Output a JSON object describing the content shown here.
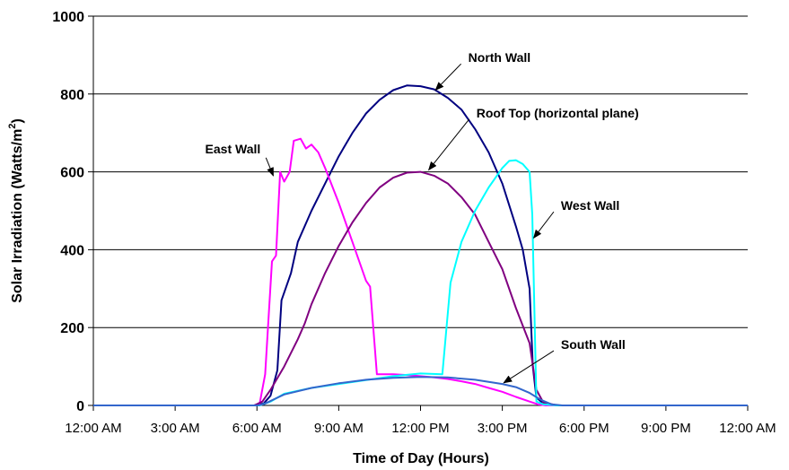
{
  "chart_data": {
    "type": "line",
    "title": "",
    "xlabel": "Time of Day (Hours)",
    "ylabel": "Solar Irradiation (Watts/m",
    "ylabel_sup": "2",
    "ylabel_tail": ")",
    "xlim": [
      0,
      24
    ],
    "ylim": [
      0,
      1000
    ],
    "yticks": [
      0,
      200,
      400,
      600,
      800,
      1000
    ],
    "yticks_labels": [
      "0",
      "200",
      "400",
      "600",
      "800",
      "1000"
    ],
    "xticks": [
      0,
      3,
      6,
      9,
      12,
      15,
      18,
      21,
      24
    ],
    "xtick_labels": [
      "12:00 AM",
      "3:00 AM",
      "6:00 AM",
      "9:00 AM",
      "12:00 PM",
      "3:00 PM",
      "6:00 PM",
      "9:00 PM",
      "12:00 AM"
    ],
    "grid": "horizontal",
    "series": [
      {
        "name": "North Wall",
        "color": "#000080",
        "points": [
          [
            0,
            0
          ],
          [
            5.9,
            0
          ],
          [
            6.25,
            5
          ],
          [
            6.5,
            25
          ],
          [
            6.75,
            90
          ],
          [
            6.9,
            270
          ],
          [
            7.25,
            340
          ],
          [
            7.5,
            420
          ],
          [
            8,
            500
          ],
          [
            8.5,
            570
          ],
          [
            9,
            640
          ],
          [
            9.5,
            700
          ],
          [
            10,
            750
          ],
          [
            10.5,
            785
          ],
          [
            11,
            810
          ],
          [
            11.5,
            822
          ],
          [
            12,
            820
          ],
          [
            12.5,
            812
          ],
          [
            13,
            790
          ],
          [
            13.5,
            760
          ],
          [
            14,
            710
          ],
          [
            14.5,
            650
          ],
          [
            15,
            570
          ],
          [
            15.5,
            460
          ],
          [
            15.75,
            400
          ],
          [
            16,
            300
          ],
          [
            16.12,
            100
          ],
          [
            16.25,
            20
          ],
          [
            16.5,
            5
          ],
          [
            17,
            0
          ],
          [
            24,
            0
          ]
        ]
      },
      {
        "name": "East Wall",
        "color": "#ff00ff",
        "points": [
          [
            0,
            0
          ],
          [
            5.9,
            0
          ],
          [
            6.1,
            5
          ],
          [
            6.3,
            80
          ],
          [
            6.55,
            370
          ],
          [
            6.7,
            385
          ],
          [
            6.85,
            600
          ],
          [
            7,
            575
          ],
          [
            7.2,
            600
          ],
          [
            7.35,
            680
          ],
          [
            7.6,
            685
          ],
          [
            7.8,
            660
          ],
          [
            8,
            670
          ],
          [
            8.25,
            650
          ],
          [
            8.5,
            610
          ],
          [
            9,
            520
          ],
          [
            9.5,
            420
          ],
          [
            10,
            320
          ],
          [
            10.15,
            305
          ],
          [
            10.4,
            80
          ],
          [
            11,
            80
          ],
          [
            11.5,
            78
          ],
          [
            12,
            75
          ],
          [
            12.5,
            72
          ],
          [
            13,
            68
          ],
          [
            13.5,
            62
          ],
          [
            14,
            55
          ],
          [
            14.5,
            45
          ],
          [
            15,
            35
          ],
          [
            15.5,
            22
          ],
          [
            16,
            10
          ],
          [
            16.3,
            3
          ],
          [
            16.6,
            0
          ],
          [
            24,
            0
          ]
        ]
      },
      {
        "name": "Roof Top (horizontal plane)",
        "color": "#800080",
        "points": [
          [
            0,
            0
          ],
          [
            5.9,
            0
          ],
          [
            6.2,
            10
          ],
          [
            6.5,
            40
          ],
          [
            7,
            100
          ],
          [
            7.5,
            170
          ],
          [
            7.75,
            210
          ],
          [
            8,
            260
          ],
          [
            8.5,
            340
          ],
          [
            9,
            410
          ],
          [
            9.5,
            470
          ],
          [
            10,
            520
          ],
          [
            10.5,
            560
          ],
          [
            11,
            585
          ],
          [
            11.5,
            598
          ],
          [
            12,
            600
          ],
          [
            12.5,
            590
          ],
          [
            13,
            570
          ],
          [
            13.5,
            535
          ],
          [
            14,
            490
          ],
          [
            14.5,
            420
          ],
          [
            15,
            350
          ],
          [
            15.5,
            250
          ],
          [
            16,
            160
          ],
          [
            16.25,
            40
          ],
          [
            16.5,
            8
          ],
          [
            17,
            0
          ],
          [
            24,
            0
          ]
        ]
      },
      {
        "name": "West Wall",
        "color": "#00ffff",
        "points": [
          [
            0,
            0
          ],
          [
            6.1,
            0
          ],
          [
            6.5,
            10
          ],
          [
            7,
            30
          ],
          [
            8,
            45
          ],
          [
            9,
            55
          ],
          [
            10,
            65
          ],
          [
            11,
            75
          ],
          [
            12,
            82
          ],
          [
            12.8,
            80
          ],
          [
            13.1,
            315
          ],
          [
            13.5,
            420
          ],
          [
            14,
            500
          ],
          [
            14.5,
            560
          ],
          [
            15,
            610
          ],
          [
            15.25,
            628
          ],
          [
            15.5,
            630
          ],
          [
            15.75,
            620
          ],
          [
            16,
            600
          ],
          [
            16.1,
            490
          ],
          [
            16.25,
            10
          ],
          [
            16.5,
            3
          ],
          [
            17,
            0
          ],
          [
            24,
            0
          ]
        ]
      },
      {
        "name": "South Wall",
        "color": "#3366cc",
        "points": [
          [
            0,
            0
          ],
          [
            6,
            0
          ],
          [
            6.25,
            3
          ],
          [
            6.6,
            15
          ],
          [
            7,
            28
          ],
          [
            8,
            45
          ],
          [
            9,
            57
          ],
          [
            10,
            66
          ],
          [
            11,
            71
          ],
          [
            12,
            73
          ],
          [
            13,
            72
          ],
          [
            14,
            66
          ],
          [
            15,
            55
          ],
          [
            15.5,
            47
          ],
          [
            16,
            32
          ],
          [
            16.4,
            15
          ],
          [
            16.8,
            3
          ],
          [
            17.2,
            0
          ],
          [
            24,
            0
          ]
        ]
      }
    ],
    "annotations": [
      {
        "text": "North Wall",
        "tx": 13.75,
        "ty": 882,
        "ax": 12.55,
        "ay": 810
      },
      {
        "text": "Roof Top (horizontal plane)",
        "tx": 14.05,
        "ty": 740,
        "ax": 12.3,
        "ay": 605
      },
      {
        "text": "East Wall",
        "tx": 4.1,
        "ty": 648,
        "ax": 6.6,
        "ay": 590
      },
      {
        "text": "West Wall",
        "tx": 17.15,
        "ty": 502,
        "ax": 16.15,
        "ay": 430
      },
      {
        "text": "South Wall",
        "tx": 17.15,
        "ty": 145,
        "ax": 15.05,
        "ay": 58
      }
    ]
  }
}
